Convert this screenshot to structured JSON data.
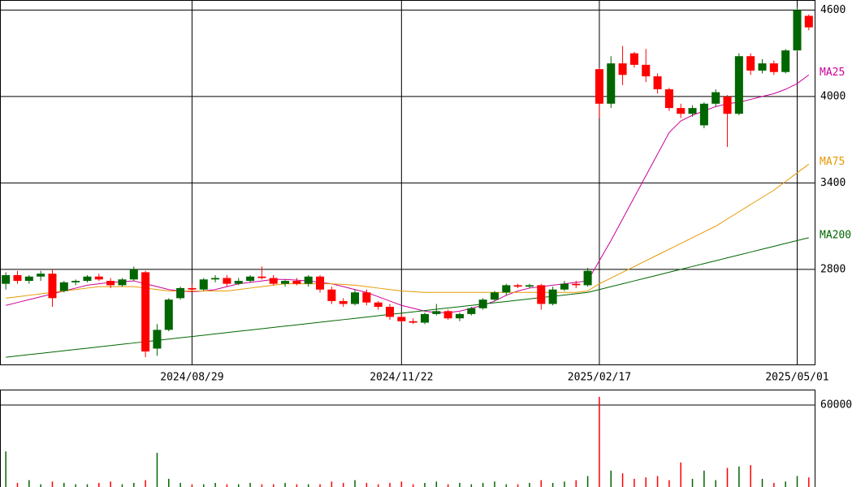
{
  "chart_data": [
    {
      "type": "candlestick",
      "categories": [
        null,
        null,
        null,
        null,
        null,
        null,
        null,
        null,
        null,
        null,
        null,
        null,
        null,
        null,
        null,
        null,
        "2024/08/29",
        null,
        null,
        null,
        null,
        null,
        null,
        null,
        null,
        null,
        null,
        null,
        null,
        null,
        null,
        null,
        null,
        null,
        "2024/11/22",
        null,
        null,
        null,
        null,
        null,
        null,
        null,
        null,
        null,
        null,
        null,
        null,
        null,
        null,
        null,
        null,
        "2025/02/17",
        null,
        null,
        null,
        null,
        null,
        null,
        null,
        null,
        null,
        null,
        null,
        null,
        null,
        null,
        null,
        null,
        "2025/05/01",
        null
      ],
      "candles": {
        "open": [
          2700,
          2760,
          2720,
          2750,
          2770,
          2650,
          2710,
          2720,
          2750,
          2720,
          2690,
          2730,
          2780,
          2250,
          2380,
          2600,
          2670,
          2660,
          2730,
          2740,
          2700,
          2720,
          2750,
          2740,
          2700,
          2720,
          2700,
          2750,
          2660,
          2580,
          2560,
          2640,
          2570,
          2540,
          2470,
          2440,
          2430,
          2490,
          2510,
          2460,
          2490,
          2530,
          2590,
          2640,
          2690,
          2680,
          2690,
          2560,
          2660,
          2700,
          2690,
          4190,
          3950,
          4230,
          4300,
          4220,
          4140,
          4050,
          3920,
          3880,
          3800,
          3950,
          4000,
          3880,
          4280,
          4180,
          4230,
          4170,
          4320,
          4560
        ],
        "high": [
          2780,
          2790,
          2760,
          2790,
          2800,
          2720,
          2730,
          2760,
          2770,
          2740,
          2740,
          2820,
          2790,
          2420,
          2600,
          2680,
          2700,
          2740,
          2760,
          2760,
          2740,
          2760,
          2820,
          2760,
          2730,
          2740,
          2760,
          2760,
          2680,
          2600,
          2660,
          2660,
          2580,
          2560,
          2490,
          2460,
          2500,
          2560,
          2520,
          2500,
          2540,
          2600,
          2650,
          2700,
          2700,
          2700,
          2700,
          2680,
          2720,
          2720,
          2810,
          4200,
          4280,
          4350,
          4310,
          4330,
          4160,
          4060,
          3950,
          3940,
          3960,
          4050,
          4010,
          4300,
          4300,
          4260,
          4250,
          4330,
          4620,
          4570
        ],
        "low": [
          2660,
          2700,
          2700,
          2720,
          2540,
          2640,
          2690,
          2710,
          2720,
          2670,
          2680,
          2720,
          2190,
          2200,
          2370,
          2590,
          2640,
          2650,
          2710,
          2680,
          2690,
          2710,
          2730,
          2690,
          2680,
          2690,
          2680,
          2640,
          2560,
          2540,
          2550,
          2550,
          2520,
          2450,
          2430,
          2420,
          2420,
          2480,
          2450,
          2440,
          2480,
          2520,
          2580,
          2620,
          2670,
          2670,
          2520,
          2550,
          2650,
          2670,
          2680,
          3850,
          3920,
          4080,
          4200,
          4100,
          4020,
          3900,
          3850,
          3860,
          3780,
          3930,
          3650,
          3870,
          4150,
          4160,
          4150,
          4160,
          4310,
          4460
        ],
        "close": [
          2760,
          2720,
          2750,
          2770,
          2600,
          2710,
          2720,
          2750,
          2730,
          2690,
          2730,
          2800,
          2230,
          2380,
          2590,
          2670,
          2660,
          2730,
          2740,
          2700,
          2720,
          2750,
          2740,
          2700,
          2720,
          2700,
          2750,
          2660,
          2580,
          2560,
          2640,
          2570,
          2540,
          2470,
          2440,
          2430,
          2490,
          2510,
          2460,
          2490,
          2530,
          2590,
          2640,
          2690,
          2680,
          2690,
          2560,
          2660,
          2700,
          2690,
          2790,
          3950,
          4230,
          4150,
          4220,
          4140,
          4050,
          3920,
          3880,
          3920,
          3950,
          4030,
          3880,
          4280,
          4180,
          4230,
          4170,
          4320,
          4600,
          4480
        ]
      },
      "up_color": "#006600",
      "down_color": "#ff0000",
      "series": [
        {
          "name": "MA25",
          "color": "#cc0099",
          "values": [
            2550,
            2570,
            2590,
            2610,
            2630,
            2650,
            2670,
            2690,
            2700,
            2710,
            2715,
            2720,
            2700,
            2680,
            2660,
            2650,
            2645,
            2650,
            2660,
            2680,
            2700,
            2710,
            2720,
            2730,
            2730,
            2725,
            2720,
            2710,
            2700,
            2680,
            2660,
            2640,
            2610,
            2580,
            2550,
            2530,
            2510,
            2500,
            2500,
            2510,
            2530,
            2550,
            2580,
            2620,
            2650,
            2670,
            2680,
            2690,
            2700,
            2710,
            2720,
            2860,
            3000,
            3150,
            3300,
            3450,
            3600,
            3750,
            3830,
            3870,
            3900,
            3930,
            3950,
            3960,
            3980,
            4000,
            4020,
            4050,
            4090,
            4150
          ]
        },
        {
          "name": "MA75",
          "color": "#e69900",
          "values": [
            2600,
            2610,
            2620,
            2630,
            2640,
            2650,
            2660,
            2670,
            2680,
            2680,
            2680,
            2680,
            2670,
            2660,
            2650,
            2650,
            2650,
            2650,
            2650,
            2650,
            2660,
            2670,
            2680,
            2690,
            2700,
            2700,
            2700,
            2700,
            2700,
            2695,
            2690,
            2680,
            2670,
            2660,
            2650,
            2645,
            2640,
            2640,
            2640,
            2640,
            2640,
            2640,
            2640,
            2640,
            2640,
            2640,
            2640,
            2640,
            2640,
            2640,
            2650,
            2700,
            2740,
            2780,
            2820,
            2860,
            2900,
            2940,
            2980,
            3020,
            3060,
            3100,
            3150,
            3200,
            3250,
            3300,
            3350,
            3410,
            3470,
            3530
          ]
        },
        {
          "name": "MA200",
          "color": "#006600",
          "values": [
            2190,
            2199,
            2208,
            2217,
            2226,
            2235,
            2244,
            2253,
            2262,
            2271,
            2280,
            2289,
            2298,
            2307,
            2316,
            2325,
            2334,
            2343,
            2352,
            2361,
            2370,
            2379,
            2388,
            2397,
            2406,
            2415,
            2424,
            2433,
            2442,
            2451,
            2460,
            2469,
            2478,
            2487,
            2496,
            2505,
            2514,
            2523,
            2532,
            2541,
            2550,
            2559,
            2568,
            2577,
            2586,
            2595,
            2604,
            2613,
            2622,
            2631,
            2640,
            2660,
            2680,
            2700,
            2720,
            2740,
            2760,
            2780,
            2800,
            2820,
            2840,
            2860,
            2880,
            2900,
            2920,
            2940,
            2960,
            2980,
            3000,
            3020
          ]
        }
      ],
      "ylim": [
        2140,
        4670
      ],
      "yticks": [
        2800,
        3400,
        4000,
        4600
      ],
      "grid": true
    },
    {
      "type": "volume",
      "values": [
        26000,
        3000,
        5000,
        2000,
        4000,
        3000,
        2000,
        2000,
        3000,
        4000,
        2000,
        3000,
        5000,
        25000,
        6000,
        3000,
        2000,
        2000,
        3000,
        2000,
        2000,
        3000,
        2000,
        2000,
        3000,
        2000,
        2000,
        2000,
        4000,
        3000,
        5000,
        3000,
        2000,
        3000,
        4000,
        2000,
        3000,
        4000,
        2000,
        3000,
        2000,
        3000,
        4000,
        2000,
        2000,
        3000,
        5000,
        3000,
        4000,
        5000,
        8000,
        66000,
        12000,
        10000,
        6000,
        7000,
        8000,
        5000,
        18000,
        6000,
        12000,
        5000,
        14000,
        15000,
        16000,
        6000,
        3000,
        4000,
        8000,
        7000
      ],
      "ylim": [
        0,
        71300
      ],
      "yticks": [
        60000
      ],
      "grid": true
    }
  ]
}
